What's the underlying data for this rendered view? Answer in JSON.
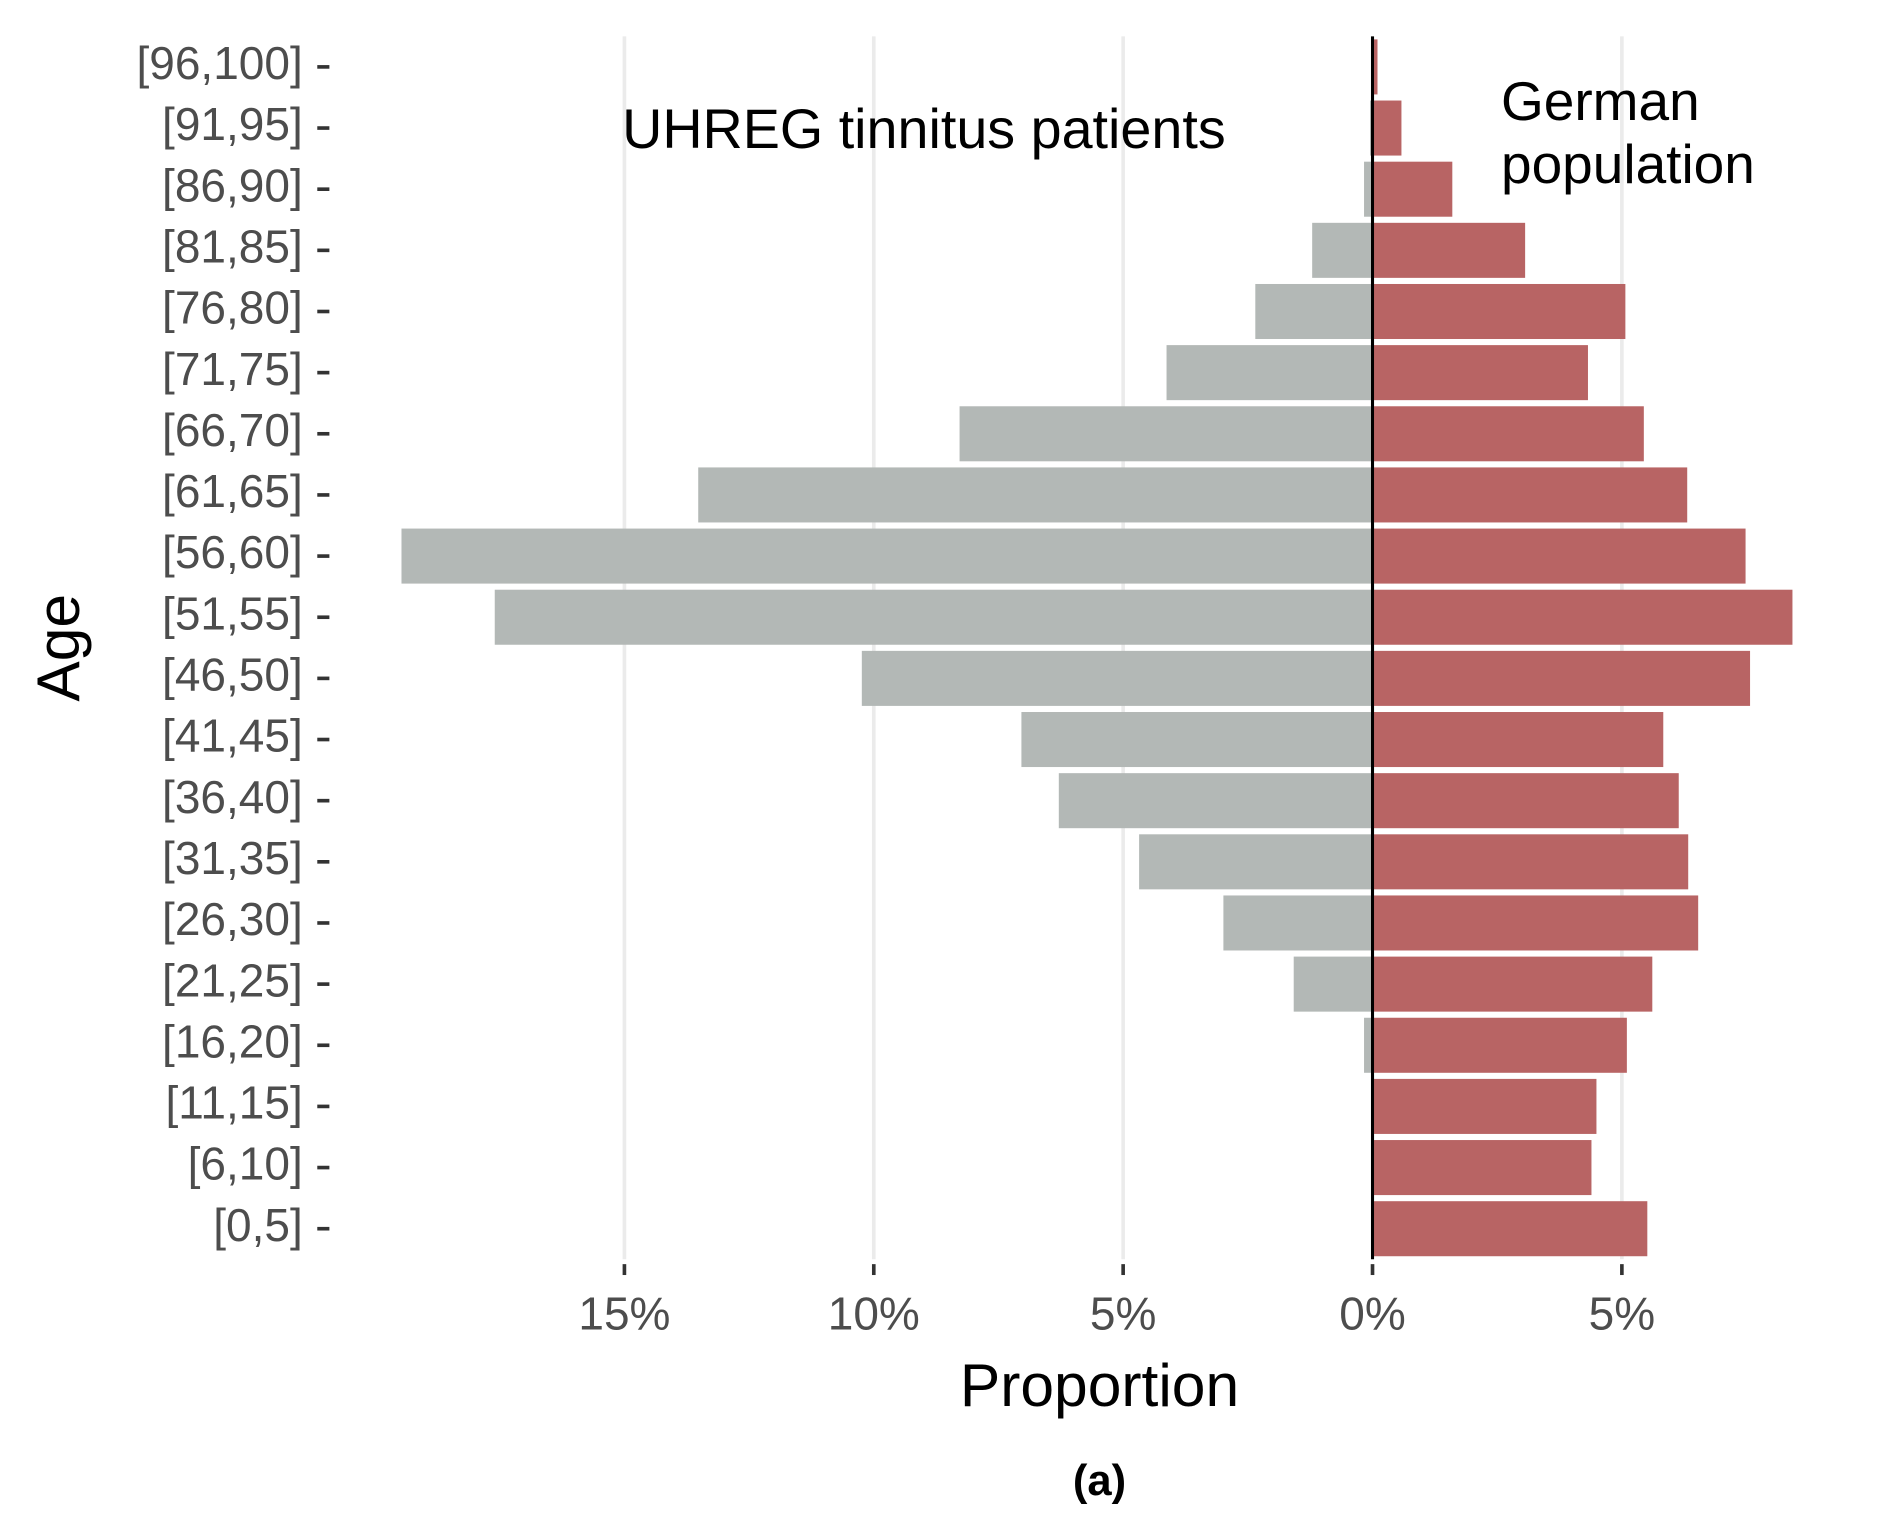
{
  "chart_data": {
    "type": "pyramid",
    "x_label": "Proportion",
    "y_label": "Age",
    "caption": "(a)",
    "categories": [
      "[0,5]",
      "[6,10]",
      "[11,15]",
      "[16,20]",
      "[21,25]",
      "[26,30]",
      "[31,35]",
      "[36,40]",
      "[41,45]",
      "[46,50]",
      "[51,55]",
      "[56,60]",
      "[61,65]",
      "[66,70]",
      "[71,75]",
      "[76,80]",
      "[81,85]",
      "[86,90]",
      "[91,95]",
      "[96,100]"
    ],
    "series": [
      {
        "name": "UHREG tinnitus patients",
        "color": "#b3b8b6",
        "values": [
          0,
          0,
          0,
          -0.17,
          -1.58,
          -2.99,
          -4.68,
          -6.29,
          -7.04,
          -10.24,
          -17.6,
          -19.47,
          -13.52,
          -8.28,
          -4.13,
          -2.35,
          -1.21,
          -0.17,
          -0.05,
          0
        ]
      },
      {
        "name": "German population",
        "color": "#b86464",
        "values": [
          5.51,
          4.39,
          4.49,
          5.1,
          5.61,
          6.53,
          6.33,
          6.14,
          5.83,
          7.57,
          8.42,
          7.48,
          6.31,
          5.44,
          4.32,
          5.07,
          3.06,
          1.6,
          0.58,
          0.1
        ]
      }
    ],
    "xlim": [
      -20.6,
      8.85
    ],
    "xticks": [
      {
        "value": -15,
        "label": "15%"
      },
      {
        "value": -10,
        "label": "10%"
      },
      {
        "value": -5,
        "label": "5%"
      },
      {
        "value": 0,
        "label": "0%"
      },
      {
        "value": 5,
        "label": "5%"
      }
    ],
    "grid": true
  }
}
